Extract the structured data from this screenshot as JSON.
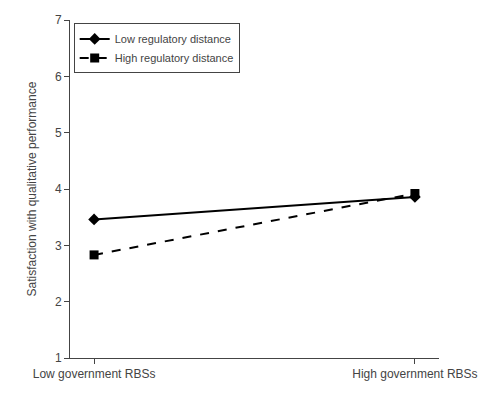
{
  "chart_data": {
    "type": "line",
    "categories": [
      "Low government RBSs",
      "High government RBSs"
    ],
    "series": [
      {
        "name": "Low regulatory distance",
        "color": "#000000",
        "marker": "diamond",
        "line_style": "solid",
        "values": [
          3.46,
          3.86
        ]
      },
      {
        "name": "High regulatory distance",
        "color": "#000000",
        "marker": "square",
        "line_style": "dashed",
        "values": [
          2.83,
          3.92
        ]
      }
    ],
    "ylabel": "Satisfaction with qualitative performance",
    "ylim": [
      1,
      7
    ],
    "yticks": [
      1,
      2,
      3,
      4,
      5,
      6,
      7
    ],
    "grid": false,
    "legend": "upper left"
  }
}
